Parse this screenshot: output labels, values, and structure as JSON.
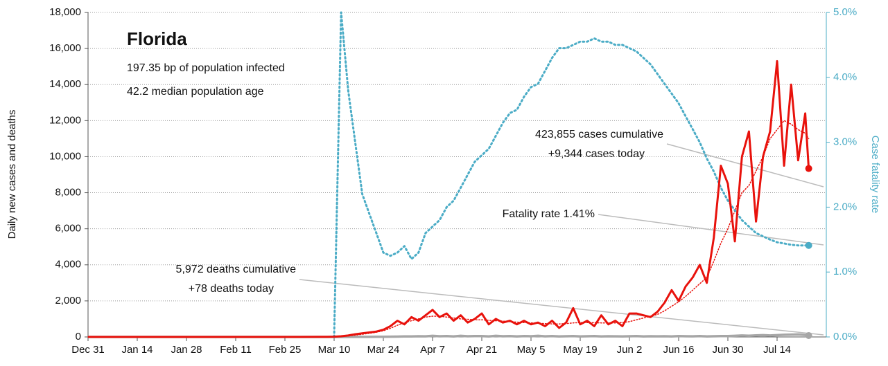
{
  "chart_data": {
    "type": "line",
    "title": "Florida",
    "subtitle_lines": [
      "197.35 bp of population infected",
      "42.2 median population age"
    ],
    "ylabel": "Daily new cases and deaths",
    "y2label": "Case fatality rate",
    "annotations": {
      "cases": [
        "423,855 cases cumulative",
        "+9,344 cases today"
      ],
      "fatality": [
        "Fatality rate 1.41%"
      ],
      "deaths": [
        "5,972 deaths cumulative",
        "+78 deaths today"
      ]
    },
    "xlim": [
      0,
      210
    ],
    "xticks": [
      {
        "value": 0,
        "label": "Dec 31"
      },
      {
        "value": 14,
        "label": "Jan 14"
      },
      {
        "value": 28,
        "label": "Jan 28"
      },
      {
        "value": 42,
        "label": "Feb 11"
      },
      {
        "value": 56,
        "label": "Feb 25"
      },
      {
        "value": 70,
        "label": "Mar 10"
      },
      {
        "value": 84,
        "label": "Mar 24"
      },
      {
        "value": 98,
        "label": "Apr 7"
      },
      {
        "value": 112,
        "label": "Apr 21"
      },
      {
        "value": 126,
        "label": "May 5"
      },
      {
        "value": 140,
        "label": "May 19"
      },
      {
        "value": 154,
        "label": "Jun 2"
      },
      {
        "value": 168,
        "label": "Jun 16"
      },
      {
        "value": 182,
        "label": "Jun 30"
      },
      {
        "value": 196,
        "label": "Jul 14"
      }
    ],
    "ylim": [
      0,
      18000
    ],
    "yticks": [
      0,
      {
        "value": 2000,
        "label": "2,000"
      },
      {
        "value": 4000,
        "label": "4,000"
      },
      {
        "value": 6000,
        "label": "6,000"
      },
      {
        "value": 8000,
        "label": "8,000"
      },
      {
        "value": 10000,
        "label": "10,000"
      },
      {
        "value": 12000,
        "label": "12,000"
      },
      {
        "value": 14000,
        "label": "14,000"
      },
      {
        "value": 16000,
        "label": "16,000"
      },
      {
        "value": 18000,
        "label": "18,000"
      }
    ],
    "y2lim": [
      0,
      5
    ],
    "y2ticks": [
      {
        "value": 0,
        "label": "0.0%"
      },
      {
        "value": 1,
        "label": "1.0%"
      },
      {
        "value": 2,
        "label": "2.0%"
      },
      {
        "value": 3,
        "label": "3.0%"
      },
      {
        "value": 4,
        "label": "4.0%"
      },
      {
        "value": 5,
        "label": "5.0%"
      }
    ],
    "grid": true,
    "x": [
      0,
      60,
      66,
      68,
      70,
      72,
      74,
      76,
      78,
      80,
      82,
      84,
      86,
      88,
      90,
      92,
      94,
      96,
      98,
      100,
      102,
      104,
      106,
      108,
      110,
      112,
      114,
      116,
      118,
      120,
      122,
      124,
      126,
      128,
      130,
      132,
      134,
      136,
      138,
      140,
      142,
      144,
      146,
      148,
      150,
      152,
      154,
      156,
      158,
      160,
      162,
      164,
      166,
      168,
      170,
      172,
      174,
      176,
      178,
      180,
      182,
      184,
      186,
      188,
      190,
      192,
      194,
      196,
      198,
      200,
      202,
      204,
      205
    ],
    "series": [
      {
        "color": "#e8120c",
        "style": "solid",
        "values": [
          0,
          0,
          2,
          5,
          15,
          40,
          80,
          150,
          200,
          250,
          300,
          400,
          600,
          900,
          700,
          1100,
          900,
          1200,
          1500,
          1100,
          1300,
          900,
          1200,
          800,
          1000,
          1300,
          700,
          1000,
          800,
          900,
          700,
          900,
          700,
          800,
          600,
          900,
          500,
          800,
          1600,
          700,
          900,
          600,
          1200,
          700,
          900,
          600,
          1300,
          1300,
          1200,
          1100,
          1400,
          1900,
          2600,
          2000,
          2800,
          3300,
          4000,
          3000,
          5500,
          9500,
          8500,
          5300,
          10000,
          11400,
          6400,
          10000,
          11400,
          15300,
          9500,
          14000,
          9800,
          12400,
          9344
        ]
      },
      {
        "color": "#e8120c",
        "style": "dotted",
        "values": [
          0,
          0,
          1,
          3,
          10,
          25,
          55,
          100,
          150,
          200,
          260,
          340,
          480,
          650,
          800,
          900,
          1000,
          1100,
          1150,
          1150,
          1100,
          1050,
          1000,
          980,
          950,
          950,
          920,
          900,
          880,
          850,
          820,
          800,
          780,
          760,
          740,
          720,
          720,
          740,
          780,
          800,
          800,
          790,
          780,
          780,
          780,
          800,
          850,
          950,
          1050,
          1150,
          1250,
          1450,
          1700,
          1950,
          2250,
          2600,
          2950,
          3300,
          4200,
          5200,
          6000,
          7000,
          8000,
          8400,
          9200,
          10000,
          11000,
          11500,
          12000,
          11800,
          11500,
          11300,
          11000
        ]
      },
      {
        "color": "#a6a6a6",
        "style": "solid",
        "values": [
          0,
          0,
          0,
          0,
          0,
          0,
          1,
          2,
          3,
          5,
          8,
          10,
          15,
          20,
          25,
          30,
          40,
          35,
          60,
          40,
          50,
          30,
          60,
          40,
          50,
          45,
          30,
          60,
          40,
          50,
          30,
          50,
          40,
          60,
          35,
          50,
          30,
          40,
          50,
          30,
          40,
          50,
          30,
          40,
          35,
          30,
          40,
          45,
          30,
          40,
          35,
          40,
          30,
          45,
          40,
          35,
          45,
          30,
          40,
          45,
          50,
          60,
          80,
          70,
          90,
          100,
          80,
          100,
          120,
          130,
          140,
          110,
          78
        ]
      },
      {
        "color": "#4bacc6",
        "style": "dotted",
        "axis": "y2",
        "values": [
          null,
          null,
          null,
          null,
          0,
          5.0,
          3.8,
          3.0,
          2.2,
          1.9,
          1.6,
          1.3,
          1.25,
          1.3,
          1.4,
          1.2,
          1.3,
          1.6,
          1.7,
          1.8,
          2.0,
          2.1,
          2.3,
          2.5,
          2.7,
          2.8,
          2.9,
          3.1,
          3.3,
          3.45,
          3.5,
          3.7,
          3.85,
          3.9,
          4.1,
          4.3,
          4.45,
          4.45,
          4.5,
          4.55,
          4.55,
          4.6,
          4.55,
          4.55,
          4.5,
          4.5,
          4.45,
          4.4,
          4.3,
          4.2,
          4.05,
          3.9,
          3.75,
          3.6,
          3.4,
          3.2,
          3.0,
          2.75,
          2.55,
          2.3,
          2.1,
          1.95,
          1.8,
          1.7,
          1.6,
          1.55,
          1.5,
          1.46,
          1.44,
          1.42,
          1.41,
          1.41,
          1.41
        ]
      }
    ]
  }
}
